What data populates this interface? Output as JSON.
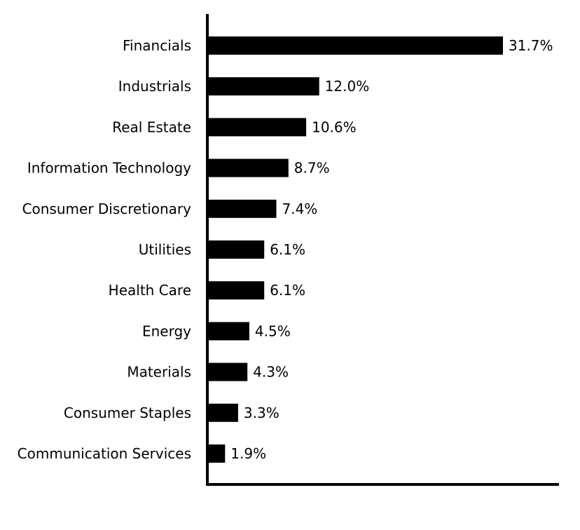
{
  "chart_data": {
    "type": "bar",
    "orientation": "horizontal",
    "title": "",
    "xlabel": "",
    "ylabel": "",
    "categories": [
      "Financials",
      "Industrials",
      "Real Estate",
      "Information Technology",
      "Consumer Discretionary",
      "Utilities",
      "Health Care",
      "Energy",
      "Materials",
      "Consumer Staples",
      "Communication Services"
    ],
    "values": [
      31.7,
      12.0,
      10.6,
      8.7,
      7.4,
      6.1,
      6.1,
      4.5,
      4.3,
      3.3,
      1.9
    ],
    "value_labels": [
      "31.7%",
      "12.0%",
      "10.6%",
      "8.7%",
      "7.4%",
      "6.1%",
      "6.1%",
      "4.5%",
      "4.3%",
      "3.3%",
      "1.9%"
    ],
    "xlim": [
      0,
      37.8
    ],
    "grid": false,
    "legend": "none",
    "bar_color": "#000000",
    "axis_color": "#000000"
  }
}
